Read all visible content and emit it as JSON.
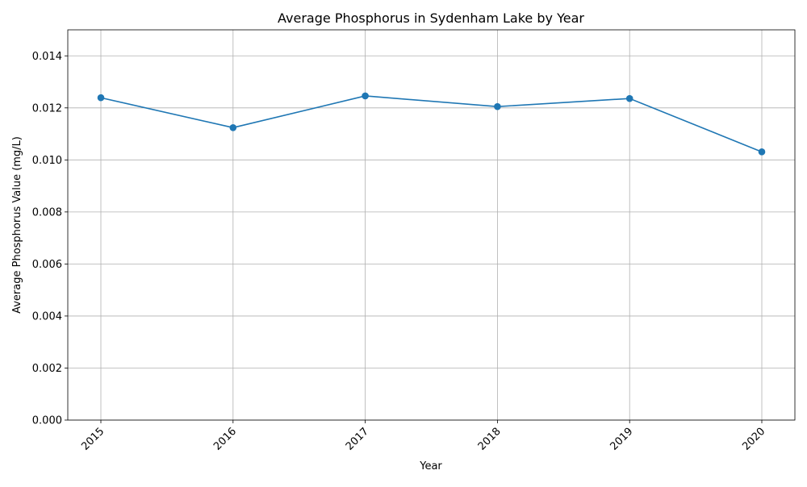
{
  "chart_data": {
    "type": "line",
    "title": "Average Phosphorus in Sydenham Lake by Year",
    "xlabel": "Year",
    "ylabel": "Average Phosphorus Value (mg/L)",
    "x": [
      "2015",
      "2016",
      "2017",
      "2018",
      "2019",
      "2020"
    ],
    "series": [
      {
        "name": "",
        "values": [
          0.01239,
          0.01124,
          0.01246,
          0.01205,
          0.01236,
          0.01031
        ],
        "color": "#1f77b4",
        "marker": "circle"
      }
    ],
    "ylim": [
      0,
      0.015
    ],
    "yticks": [
      "0.000",
      "0.002",
      "0.004",
      "0.006",
      "0.008",
      "0.010",
      "0.012",
      "0.014"
    ],
    "grid": true,
    "legend": "none"
  }
}
